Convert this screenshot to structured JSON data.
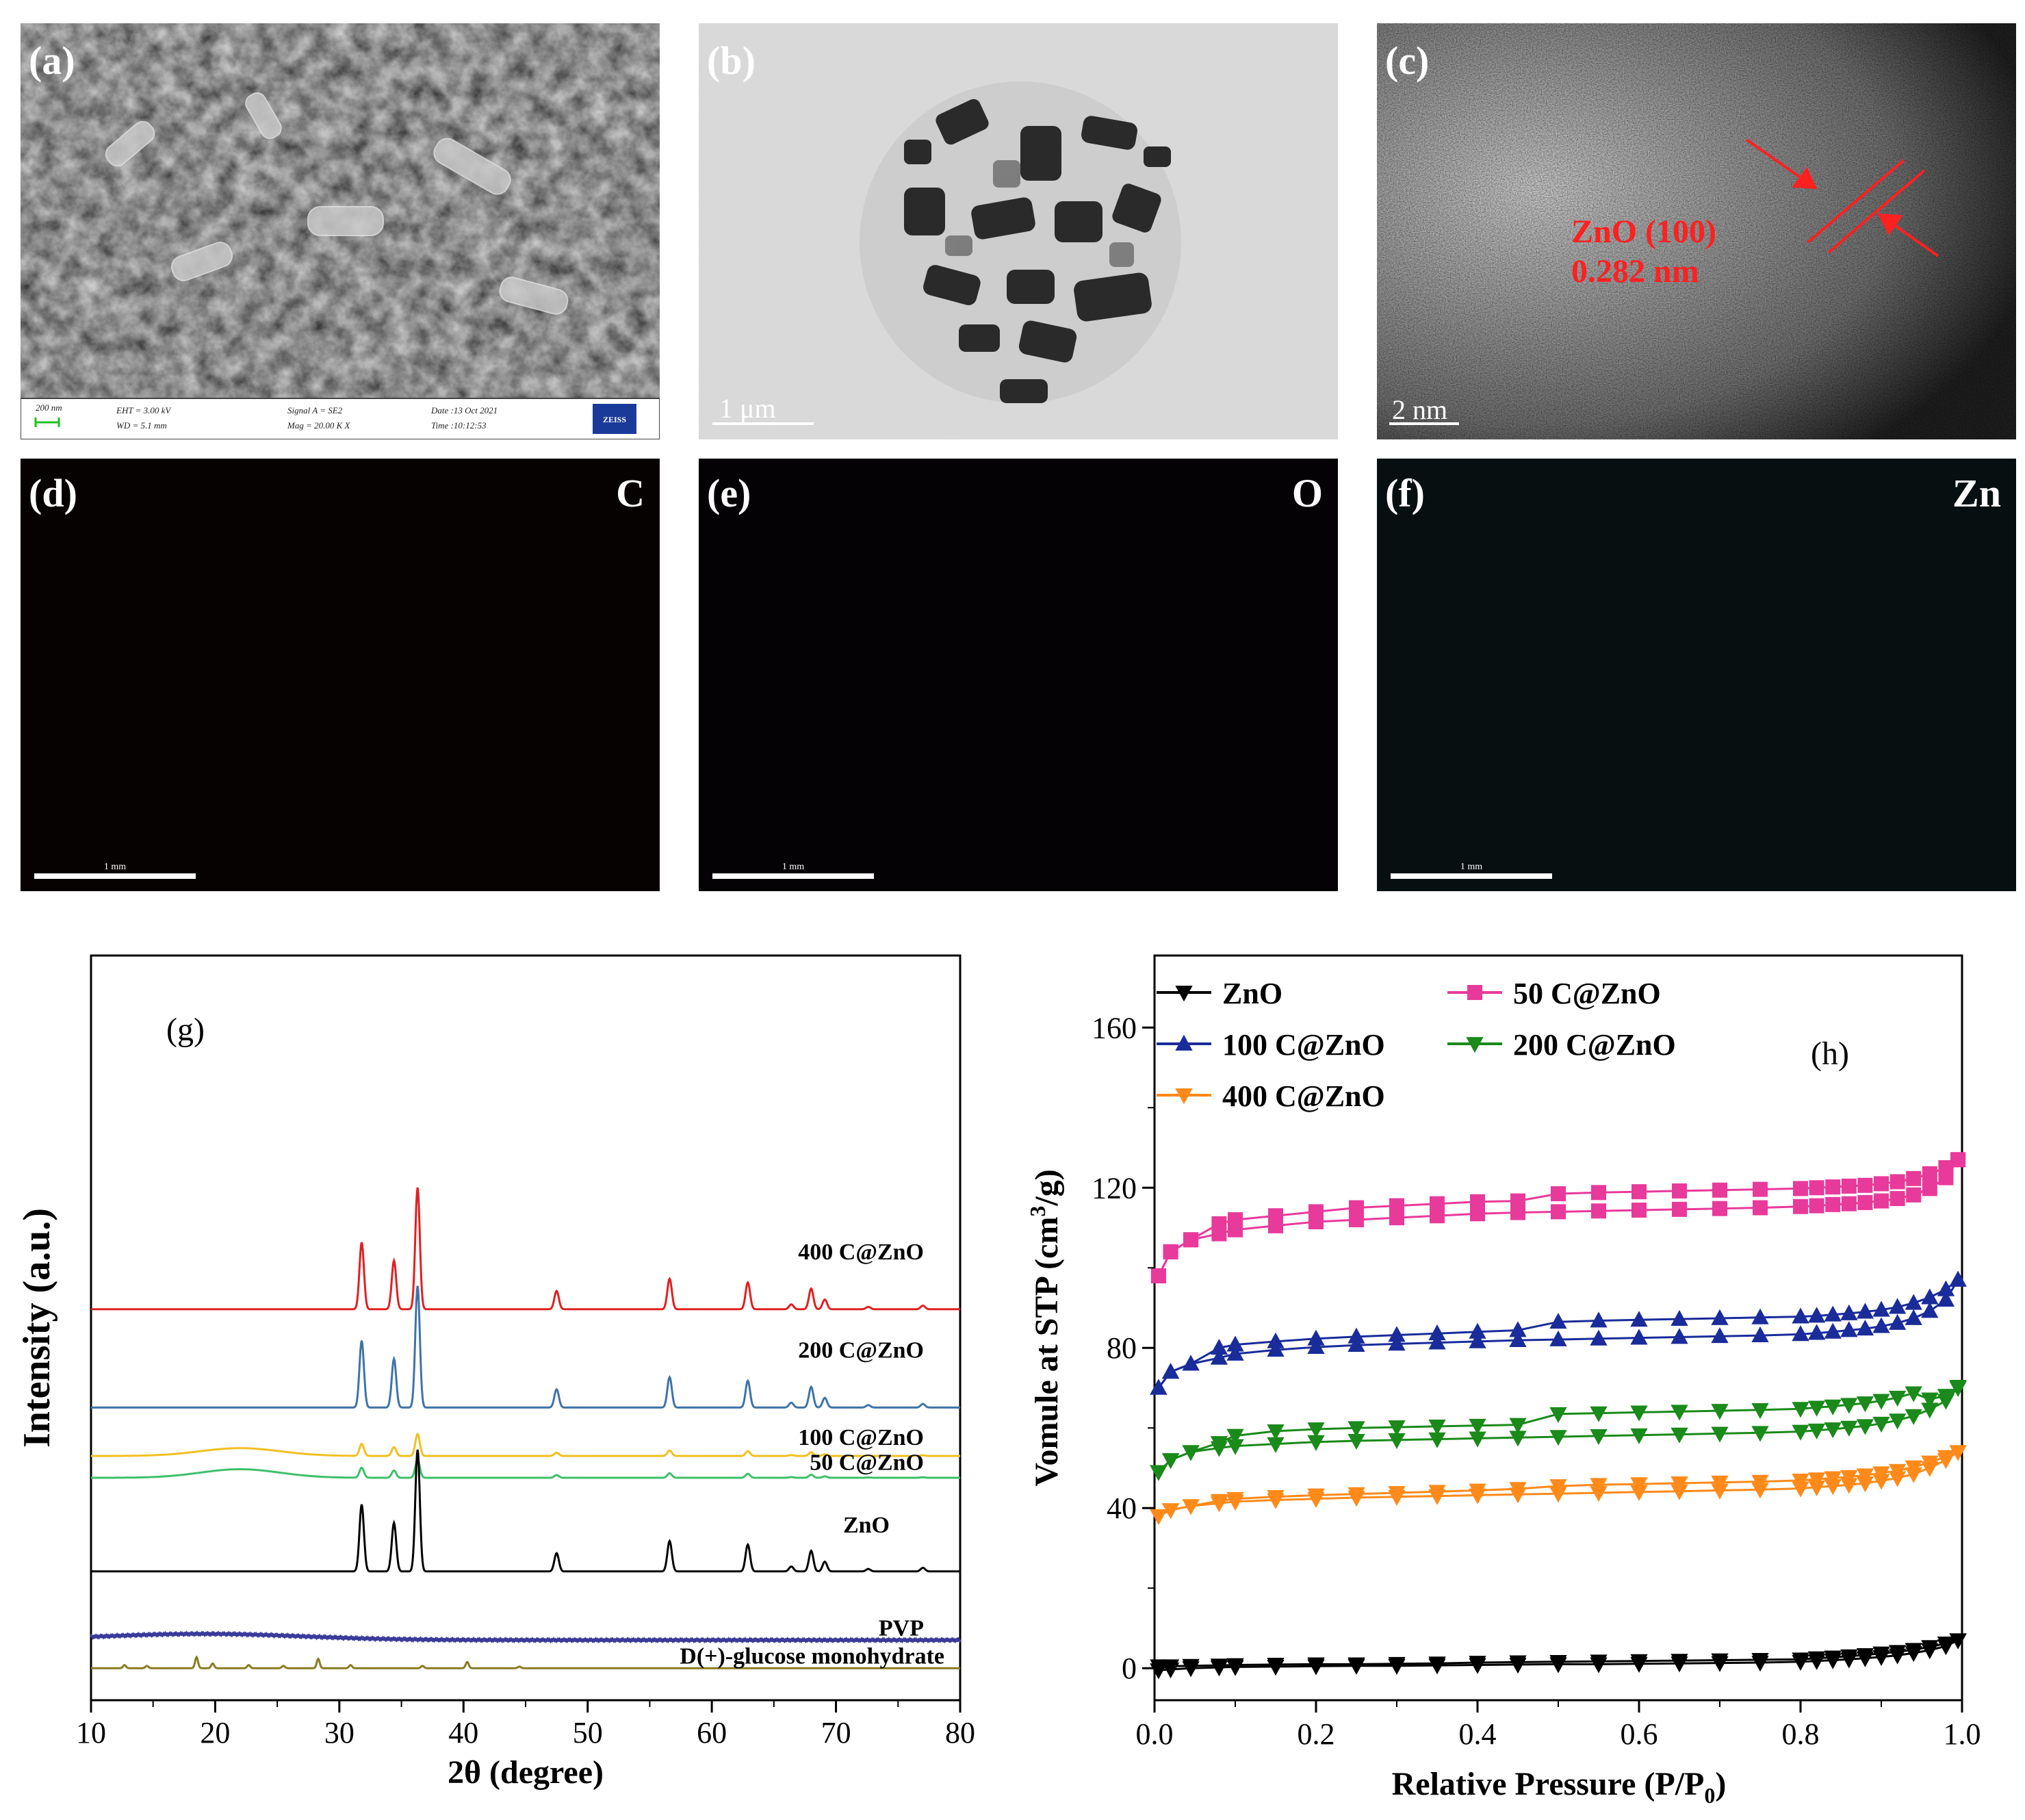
{
  "colors": {
    "red": "#e02020",
    "steel": "#3f73a6",
    "yellow": "#f0c020",
    "green": "#3fbf6a",
    "black": "#000000",
    "purple": "#3a3a9a",
    "olive": "#8a7a20",
    "magenta": "#e83a9a",
    "blue": "#1a2c9a",
    "dgreen": "#1a8a1a",
    "orange": "#ff8a1a",
    "red_label": "#ff2020",
    "cyan_map": "#2fb0b0"
  },
  "micrographs": {
    "a": {
      "label": "(a)",
      "meta": {
        "scale": "200 nm",
        "eht": "EHT = 3.00 kV",
        "wd": "WD = 5.1 mm",
        "signal": "Signal A = SE2",
        "mag": "Mag = 20.00 K X",
        "date": "Date :13 Oct 2021",
        "time": "Time :10:12:53",
        "brand": "ZEISS"
      }
    },
    "b": {
      "label": "(b)",
      "scale": "1 μm"
    },
    "c": {
      "label": "(c)",
      "scale": "2 nm",
      "annotation_line1": "ZnO (100)",
      "annotation_line2": "0.282 nm"
    },
    "d": {
      "label": "(d)",
      "element": "C",
      "scale": "1 mm"
    },
    "e": {
      "label": "(e)",
      "element": "O",
      "scale": "1 mm"
    },
    "f": {
      "label": "(f)",
      "element": "Zn",
      "scale": "1 mm"
    }
  },
  "chart_data": [
    {
      "type": "line",
      "panel_label": "(g)",
      "xlabel": "2θ (degree)",
      "ylabel": "Intensity (a.u.)",
      "xlim": [
        10,
        80
      ],
      "xticks": [
        "10",
        "20",
        "30",
        "40",
        "50",
        "60",
        "70",
        "80"
      ],
      "zno_peaks_2theta": [
        31.8,
        34.4,
        36.3,
        47.5,
        56.6,
        62.9,
        66.4,
        68.0,
        69.1,
        72.6,
        77.0
      ],
      "series": [
        {
          "name": "400 C@ZnO",
          "color_key": "red",
          "baseline": 2.4,
          "peak_scale": 1.0,
          "hump": 0
        },
        {
          "name": "200 C@ZnO",
          "color_key": "steel",
          "baseline": 1.77,
          "peak_scale": 1.0,
          "hump": 0
        },
        {
          "name": "100 C@ZnO",
          "color_key": "yellow",
          "baseline": 1.46,
          "peak_scale": 0.18,
          "hump": 0.05
        },
        {
          "name": "50 C@ZnO",
          "color_key": "green",
          "baseline": 1.32,
          "peak_scale": 0.15,
          "hump": 0.055
        },
        {
          "name": "ZnO",
          "color_key": "black",
          "baseline": 0.72,
          "peak_scale": 1.0,
          "hump": 0
        },
        {
          "name": "PVP",
          "color_key": "purple",
          "baseline": 0.28,
          "peak_scale": 0,
          "hump": 0
        },
        {
          "name": "D(+)-glucose monohydrate",
          "color_key": "olive",
          "baseline": 0.1,
          "peak_scale": 0,
          "hump": 0,
          "peaks_2theta": [
            12.7,
            14.5,
            18.5,
            19.8,
            22.7,
            25.5,
            28.3,
            30.9,
            36.7,
            40.3,
            44.5
          ]
        }
      ]
    },
    {
      "type": "line",
      "panel_label": "(h)",
      "xlabel": "Relative Pressure (P/P",
      "xlabel_sub": "0",
      "xlabel_end": ")",
      "ylabel": "Vomule at STP (cm",
      "ylabel_sup": "3",
      "ylabel_end": "/g)",
      "xlim": [
        0.0,
        1.0
      ],
      "ylim": [
        -8,
        178
      ],
      "xticks": [
        "0.0",
        "0.2",
        "0.4",
        "0.6",
        "0.8",
        "1.0"
      ],
      "yticks": [
        "0",
        "40",
        "80",
        "120",
        "160"
      ],
      "x": [
        0.005,
        0.02,
        0.045,
        0.08,
        0.1,
        0.15,
        0.2,
        0.25,
        0.3,
        0.35,
        0.4,
        0.45,
        0.5,
        0.55,
        0.6,
        0.65,
        0.7,
        0.75,
        0.8,
        0.82,
        0.84,
        0.86,
        0.88,
        0.9,
        0.92,
        0.94,
        0.96,
        0.98,
        0.995
      ],
      "series": [
        {
          "name": "ZnO",
          "color_key": "black",
          "marker": "tri-down",
          "adsorption": [
            -0.5,
            -0.3,
            0,
            0.2,
            0.3,
            0.4,
            0.5,
            0.6,
            0.6,
            0.7,
            0.8,
            0.9,
            1,
            1,
            1.1,
            1.2,
            1.3,
            1.4,
            1.6,
            1.8,
            2,
            2.2,
            2.5,
            2.8,
            3.2,
            3.8,
            4.5,
            5.5,
            7
          ],
          "desorption": [
            0.5,
            0.5,
            0.6,
            0.7,
            0.8,
            0.9,
            1,
            1,
            1.1,
            1.2,
            1.4,
            1.5,
            1.6,
            1.7,
            1.8,
            1.9,
            2,
            2.1,
            2.2,
            2.5,
            2.7,
            3,
            3.3,
            3.7,
            4.1,
            4.6,
            5.3,
            6.2,
            7
          ]
        },
        {
          "name": "50 C@ZnO",
          "color_key": "magenta",
          "marker": "square",
          "adsorption": [
            98,
            104,
            107,
            108.5,
            109.5,
            110.5,
            111.5,
            112,
            112.5,
            113,
            113.5,
            113.8,
            114,
            114.2,
            114.4,
            114.6,
            114.8,
            115,
            115.3,
            115.5,
            115.8,
            116,
            116.3,
            116.7,
            117.3,
            118.2,
            119.8,
            122.5,
            127
          ],
          "desorption": [
            98,
            104,
            107,
            111,
            112,
            113,
            114,
            115,
            115.5,
            116,
            116.5,
            116.7,
            118.5,
            118.8,
            119,
            119.2,
            119.4,
            119.6,
            119.8,
            120,
            120.2,
            120.4,
            120.6,
            121,
            121.5,
            122.3,
            123.5,
            125,
            127
          ]
        },
        {
          "name": "100 C@ZnO",
          "color_key": "blue",
          "marker": "tri-up",
          "adsorption": [
            70,
            74,
            76,
            77.5,
            78.5,
            79.5,
            80.2,
            80.7,
            81,
            81.3,
            81.6,
            81.9,
            82.1,
            82.3,
            82.5,
            82.7,
            82.9,
            83.1,
            83.4,
            83.7,
            84,
            84.4,
            84.8,
            85.4,
            86.2,
            87.4,
            89.2,
            92,
            97
          ],
          "desorption": [
            70,
            74,
            76,
            80,
            80.8,
            81.6,
            82.3,
            82.8,
            83.2,
            83.6,
            84,
            84.4,
            86.5,
            86.8,
            87,
            87.2,
            87.4,
            87.6,
            87.8,
            88,
            88.3,
            88.6,
            89,
            89.5,
            90.2,
            91.2,
            92.6,
            94.6,
            97
          ]
        },
        {
          "name": "200 C@ZnO",
          "color_key": "dgreen",
          "marker": "tri-down",
          "adsorption": [
            49,
            52,
            54,
            55,
            55.5,
            56,
            56.5,
            56.8,
            57,
            57.2,
            57.4,
            57.6,
            57.8,
            58,
            58.2,
            58.4,
            58.6,
            58.8,
            59.1,
            59.4,
            59.7,
            60.1,
            60.5,
            61.1,
            61.9,
            63,
            64.6,
            66.8,
            70
          ]
        },
        {
          "name": "400 C@ZnO",
          "color_key": "orange",
          "marker": "tri-down",
          "adsorption": [
            38,
            39.5,
            40.5,
            41.2,
            41.6,
            42,
            42.3,
            42.6,
            42.8,
            43,
            43.2,
            43.4,
            43.6,
            43.8,
            44,
            44.2,
            44.4,
            44.6,
            44.9,
            45.2,
            45.5,
            45.8,
            46.2,
            46.8,
            47.5,
            48.5,
            50,
            52,
            54
          ],
          "desorption": [
            38,
            39.5,
            40.5,
            41.8,
            42.3,
            42.8,
            43.2,
            43.5,
            43.8,
            44.1,
            44.4,
            44.8,
            45.5,
            45.8,
            46,
            46.2,
            46.4,
            46.6,
            46.9,
            47.2,
            47.5,
            47.8,
            48.2,
            48.7,
            49.3,
            50.2,
            51.4,
            52.8,
            54
          ]
        }
      ]
    }
  ]
}
